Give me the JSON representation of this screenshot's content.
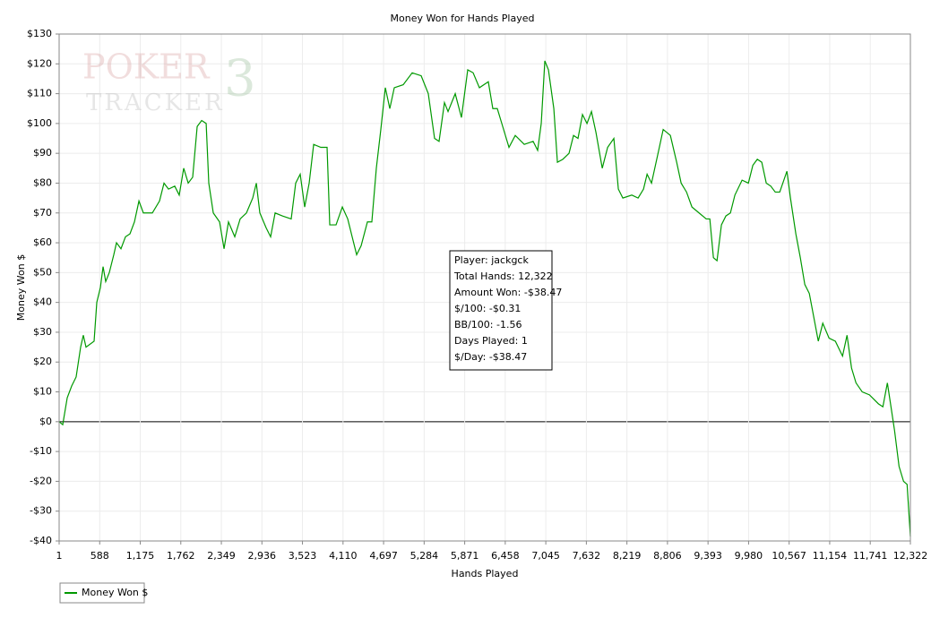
{
  "chart_data": {
    "type": "line",
    "title": "Money Won for Hands Played",
    "x_label": "Hands Played",
    "y_label": "Money Won $",
    "watermark": {
      "top": "POKER",
      "mark": "3",
      "bottom": "TRACKER"
    },
    "info_box": [
      "Player: jackgck",
      "Total Hands: 12,322",
      "Amount Won: -$38.47",
      "$/100: -$0.31",
      "BB/100: -1.56",
      "Days Played: 1",
      "$/Day: -$38.47"
    ],
    "x": [
      1,
      53,
      118,
      183,
      247,
      312,
      351,
      390,
      507,
      546,
      598,
      637,
      675,
      727,
      792,
      831,
      896,
      961,
      1026,
      1091,
      1156,
      1220,
      1350,
      1454,
      1519,
      1584,
      1674,
      1739,
      1804,
      1869,
      1934,
      1999,
      2064,
      2129,
      2167,
      2232,
      2323,
      2388,
      2452,
      2543,
      2621,
      2712,
      2803,
      2855,
      2906,
      2997,
      3062,
      3127,
      3231,
      3360,
      3425,
      3490,
      3555,
      3620,
      3685,
      3789,
      3879,
      3918,
      4009,
      4100,
      4178,
      4242,
      4307,
      4372,
      4463,
      4527,
      4592,
      4657,
      4722,
      4787,
      4852,
      4981,
      5111,
      5241,
      5344,
      5435,
      5500,
      5578,
      5630,
      5734,
      5824,
      5915,
      5993,
      6084,
      6213,
      6278,
      6343,
      6408,
      6512,
      6603,
      6733,
      6862,
      6927,
      6979,
      7031,
      7083,
      7161,
      7213,
      7291,
      7381,
      7446,
      7511,
      7576,
      7641,
      7706,
      7771,
      7862,
      7940,
      8030,
      8095,
      8160,
      8290,
      8381,
      8459,
      8511,
      8575,
      8679,
      8744,
      8848,
      8939,
      9004,
      9082,
      9160,
      9263,
      9367,
      9419,
      9471,
      9523,
      9587,
      9652,
      9717,
      9782,
      9886,
      9977,
      10042,
      10106,
      10171,
      10236,
      10301,
      10366,
      10431,
      10535,
      10586,
      10664,
      10729,
      10794,
      10859,
      10924,
      10989,
      11054,
      11145,
      11236,
      11340,
      11405,
      11470,
      11535,
      11625,
      11729,
      11859,
      11924,
      11989,
      12028,
      12093,
      12158,
      12223,
      12274,
      12322
    ],
    "series": [
      {
        "name": "Money Won $",
        "color": "#009900",
        "values": [
          0,
          -1,
          8,
          12,
          15,
          25,
          29,
          25,
          27,
          40,
          45,
          52,
          47,
          50,
          56,
          60,
          58,
          62,
          63,
          67,
          74,
          70,
          70,
          74,
          80,
          78,
          79,
          76,
          85,
          80,
          82,
          99,
          101,
          100,
          80,
          70,
          67,
          58,
          67,
          62,
          68,
          70,
          75,
          80,
          70,
          65,
          62,
          70,
          69,
          68,
          80,
          83,
          72,
          80,
          93,
          92,
          92,
          66,
          66,
          72,
          68,
          62,
          56,
          59,
          67,
          67,
          85,
          98,
          112,
          105,
          112,
          113,
          117,
          116,
          110,
          95,
          94,
          107,
          104,
          110,
          102,
          118,
          117,
          112,
          114,
          105,
          105,
          100,
          92,
          96,
          93,
          94,
          91,
          100,
          121,
          118,
          105,
          87,
          88,
          90,
          96,
          95,
          103,
          100,
          104,
          97,
          85,
          92,
          95,
          78,
          75,
          76,
          75,
          78,
          83,
          80,
          91,
          98,
          96,
          87,
          80,
          77,
          72,
          70,
          68,
          68,
          55,
          54,
          66,
          69,
          70,
          76,
          81,
          80,
          86,
          88,
          87,
          80,
          79,
          77,
          77,
          84,
          75,
          63,
          55,
          46,
          43,
          35,
          27,
          33,
          28,
          27,
          22,
          29,
          18,
          13,
          10,
          9,
          6,
          5,
          13,
          7,
          -3,
          -15,
          -20,
          -21,
          -38.47
        ]
      }
    ],
    "xlim": [
      1,
      12322
    ],
    "xticks": [
      1,
      588,
      {
        "value": 1175,
        "label": "1,175"
      },
      {
        "value": 1762,
        "label": "1,762"
      },
      {
        "value": 2349,
        "label": "2,349"
      },
      {
        "value": 2936,
        "label": "2,936"
      },
      {
        "value": 3523,
        "label": "3,523"
      },
      {
        "value": 4110,
        "label": "4,110"
      },
      {
        "value": 4697,
        "label": "4,697"
      },
      {
        "value": 5284,
        "label": "5,284"
      },
      {
        "value": 5871,
        "label": "5,871"
      },
      {
        "value": 6458,
        "label": "6,458"
      },
      {
        "value": 7045,
        "label": "7,045"
      },
      {
        "value": 7632,
        "label": "7,632"
      },
      {
        "value": 8219,
        "label": "8,219"
      },
      {
        "value": 8806,
        "label": "8,806"
      },
      {
        "value": 9393,
        "label": "9,393"
      },
      {
        "value": 9980,
        "label": "9,980"
      },
      {
        "value": 10567,
        "label": "10,567"
      },
      {
        "value": 11154,
        "label": "11,154"
      },
      {
        "value": 11741,
        "label": "11,741"
      },
      {
        "value": 12322,
        "label": "12,322"
      }
    ],
    "ylim": [
      -40,
      130
    ],
    "yticks": [
      {
        "value": -40,
        "label": "-$40"
      },
      {
        "value": -30,
        "label": "-$30"
      },
      {
        "value": -20,
        "label": "-$20"
      },
      {
        "value": -10,
        "label": "-$10"
      },
      {
        "value": 0,
        "label": "$0"
      },
      {
        "value": 10,
        "label": "$10"
      },
      {
        "value": 20,
        "label": "$20"
      },
      {
        "value": 30,
        "label": "$30"
      },
      {
        "value": 40,
        "label": "$40"
      },
      {
        "value": 50,
        "label": "$50"
      },
      {
        "value": 60,
        "label": "$60"
      },
      {
        "value": 70,
        "label": "$70"
      },
      {
        "value": 80,
        "label": "$80"
      },
      {
        "value": 90,
        "label": "$90"
      },
      {
        "value": 100,
        "label": "$100"
      },
      {
        "value": 110,
        "label": "$110"
      },
      {
        "value": 120,
        "label": "$120"
      },
      {
        "value": 130,
        "label": "$130"
      }
    ],
    "grid": true
  }
}
